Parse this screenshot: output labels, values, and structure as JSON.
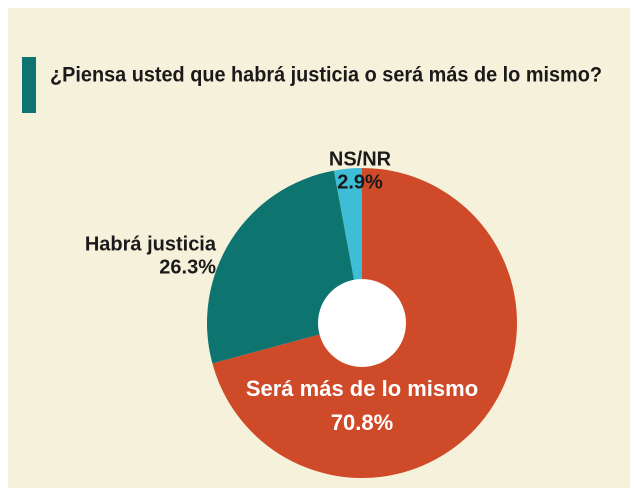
{
  "chart_data": {
    "type": "pie",
    "title": "¿Piensa usted que habrá justicia o será más de lo mismo?",
    "categories": [
      "Será más de lo mismo",
      "Habrá justicia",
      "NS/NR"
    ],
    "values": [
      70.8,
      26.3,
      2.9
    ],
    "value_labels": [
      "70.8%",
      "26.3%",
      "2.9%"
    ],
    "colors": [
      "#cf4a28",
      "#0d7470",
      "#3dbdd6"
    ]
  }
}
